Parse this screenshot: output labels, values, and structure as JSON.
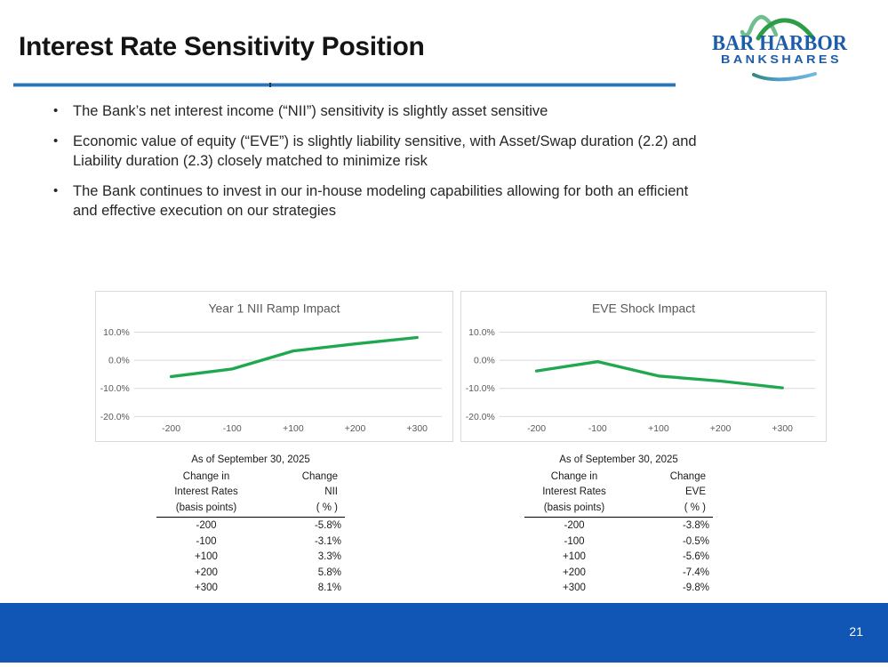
{
  "header": {
    "title": "Interest Rate Sensitivity Position"
  },
  "logo": {
    "line1": "BAR HARBOR",
    "line2": "BANKSHARES",
    "colors": {
      "text_blue": "#1d5ca8",
      "mountain_light_green": "#6fbe8d",
      "mountain_dark_green": "#2e9d47",
      "swoosh_blue": "#4f9fd0",
      "swoosh_teal": "#2e8b7a"
    }
  },
  "bullets": [
    {
      "lines": [
        "The Bank’s net interest income (“NII”) sensitivity is slightly asset sensitive"
      ]
    },
    {
      "lines": [
        "Economic value of equity (“EVE”) is slightly liability sensitive, with Asset/Swap duration (2.2) and",
        "Liability duration (2.3) closely matched to minimize risk"
      ]
    },
    {
      "lines": [
        "The Bank continues to invest in our in-house modeling capabilities allowing for both an efficient",
        "and effective execution on our strategies"
      ]
    }
  ],
  "chart_data": [
    {
      "type": "line",
      "title": "Year 1 NII Ramp Impact",
      "categories": [
        "-200",
        "-100",
        "+100",
        "+200",
        "+300"
      ],
      "values": [
        -5.8,
        -3.1,
        3.3,
        5.8,
        8.1
      ],
      "xlabel": "",
      "ylabel": "",
      "y_tick_labels": [
        "10.0%",
        "0.0%",
        "-10.0%",
        "-20.0%"
      ],
      "y_tick_values": [
        10,
        0,
        -10,
        -20
      ],
      "ylim": [
        -20,
        15
      ],
      "grid": true,
      "legend": false,
      "line_color": "#1fa84f"
    },
    {
      "type": "line",
      "title": "EVE Shock Impact",
      "categories": [
        "-200",
        "-100",
        "+100",
        "+200",
        "+300"
      ],
      "values": [
        -3.8,
        -0.5,
        -5.6,
        -7.4,
        -9.8
      ],
      "xlabel": "",
      "ylabel": "",
      "y_tick_labels": [
        "10.0%",
        "0.0%",
        "-10.0%",
        "-20.0%"
      ],
      "y_tick_values": [
        10,
        0,
        -10,
        -20
      ],
      "ylim": [
        -20,
        15
      ],
      "grid": true,
      "legend": false,
      "line_color": "#1fa84f"
    }
  ],
  "tables": [
    {
      "caption": "As of September 30, 2025",
      "col1_header": [
        "Change in",
        "Interest Rates",
        "(basis points)"
      ],
      "col2_header": [
        "Change",
        "NII",
        "( % )"
      ],
      "rows": [
        [
          "-200",
          "-5.8%"
        ],
        [
          "-100",
          "-3.1%"
        ],
        [
          "+100",
          "3.3%"
        ],
        [
          "+200",
          "5.8%"
        ],
        [
          "+300",
          "8.1%"
        ]
      ]
    },
    {
      "caption": "As of September 30, 2025",
      "col1_header": [
        "Change in",
        "Interest Rates",
        "(basis points)"
      ],
      "col2_header": [
        "Change",
        "EVE",
        "( % )"
      ],
      "rows": [
        [
          "-200",
          "-3.8%"
        ],
        [
          "-100",
          "-0.5%"
        ],
        [
          "+100",
          "-5.6%"
        ],
        [
          "+200",
          "-7.4%"
        ],
        [
          "+300",
          "-9.8%"
        ]
      ]
    }
  ],
  "footer": {
    "page_number": "21"
  },
  "colors": {
    "title_text": "#141414",
    "title_rule_blue": "#2e74b5",
    "footer_blue": "#1156b5",
    "chart_border": "#d9d9d9",
    "chart_gridline": "#d9d9d9",
    "chart_text_gray": "#595959",
    "chart_line_green": "#1fa84f",
    "body_text": "#262626"
  }
}
